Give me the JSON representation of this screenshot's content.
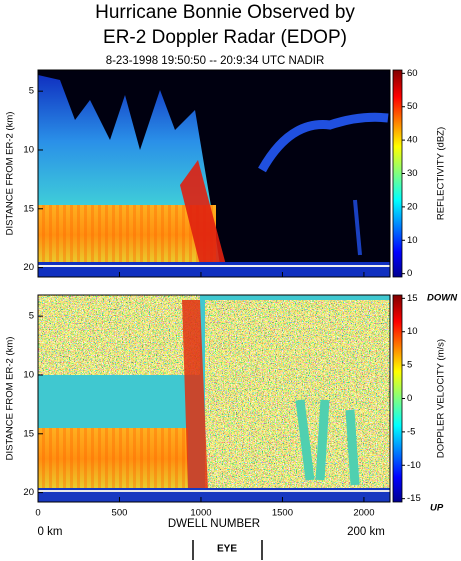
{
  "header": {
    "title": [
      "Hurricane Bonnie Observed by",
      "ER-2 Doppler Radar (EDOP)"
    ],
    "subtitle": "8-23-1998  19:50:50 -- 20:9:34 UTC NADIR"
  },
  "chart_data": [
    {
      "type": "heatmap",
      "ylabel": "DISTANCE FROM ER-2 (km)",
      "ylim": [
        3.2,
        20.8
      ],
      "yticks": [
        5,
        10,
        15,
        20
      ],
      "y_inverted": true,
      "xlim": [
        0,
        2160
      ],
      "xticks": [
        0,
        500,
        1000,
        1500,
        2000
      ],
      "xticklabels": false,
      "colorbar_label": "REFLECTIVITY (dBZ)",
      "clim": [
        -1,
        61
      ],
      "cticks": [
        0,
        10,
        20,
        30,
        40,
        50,
        60
      ]
    },
    {
      "type": "heatmap",
      "ylabel": "DISTANCE FROM ER-2 (km)",
      "ylim": [
        3.2,
        20.8
      ],
      "yticks": [
        5,
        10,
        15,
        20
      ],
      "y_inverted": true,
      "xlim": [
        0,
        2160
      ],
      "xticks": [
        0,
        500,
        1000,
        1500,
        2000
      ],
      "xticklabels": true,
      "xlabel": "DWELL NUMBER",
      "colorbar_label": "DOPPLER VELOCITY (m/s)",
      "clim": [
        -15.5,
        15.5
      ],
      "cticks": [
        -15,
        -10,
        -5,
        0,
        5,
        10,
        15
      ],
      "colorbar_top_label": "DOWN",
      "colorbar_bottom_label": "UP"
    }
  ],
  "footer": {
    "start": "0 km",
    "end": "200 km",
    "marker": "EYE"
  }
}
